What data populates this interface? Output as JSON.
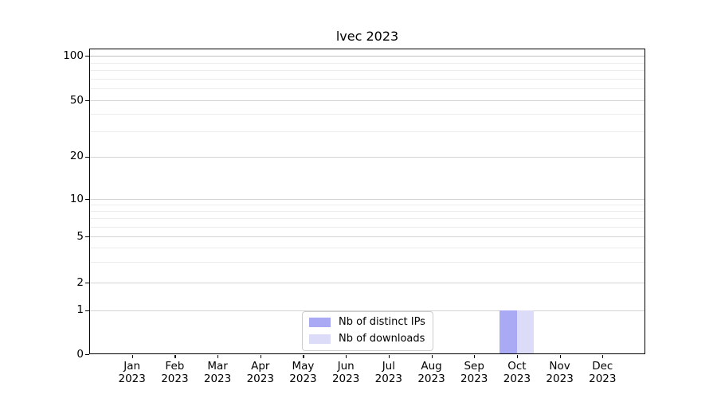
{
  "chart_data": {
    "type": "bar",
    "title": "lvec 2023",
    "categories": [
      {
        "month": "Jan",
        "year": "2023"
      },
      {
        "month": "Feb",
        "year": "2023"
      },
      {
        "month": "Mar",
        "year": "2023"
      },
      {
        "month": "Apr",
        "year": "2023"
      },
      {
        "month": "May",
        "year": "2023"
      },
      {
        "month": "Jun",
        "year": "2023"
      },
      {
        "month": "Jul",
        "year": "2023"
      },
      {
        "month": "Aug",
        "year": "2023"
      },
      {
        "month": "Sep",
        "year": "2023"
      },
      {
        "month": "Oct",
        "year": "2023"
      },
      {
        "month": "Nov",
        "year": "2023"
      },
      {
        "month": "Dec",
        "year": "2023"
      }
    ],
    "series": [
      {
        "name": "Nb of distinct IPs",
        "color": "#a9a9f4",
        "values": [
          0,
          0,
          0,
          0,
          0,
          0,
          0,
          0,
          0,
          1,
          0,
          0
        ]
      },
      {
        "name": "Nb of downloads",
        "color": "#dcdcf8",
        "values": [
          0,
          0,
          0,
          0,
          0,
          0,
          0,
          0,
          0,
          1,
          0,
          0
        ]
      }
    ],
    "y_axis": {
      "scale": "symlog",
      "ticks": [
        0,
        1,
        2,
        5,
        10,
        20,
        50,
        100
      ],
      "minor_ticks": [
        3,
        4,
        6,
        7,
        8,
        9,
        30,
        40,
        60,
        70,
        80,
        90
      ],
      "range_top": 112
    },
    "x_axis": {
      "unit": "month"
    },
    "grid": "horizontal major and minor",
    "legend_position": "lower-center"
  },
  "colors": {
    "background": "#ffffff",
    "axis": "#000000",
    "grid_major": "#d4d4d4",
    "grid_minor": "#ececec",
    "grid_top_line": "#c0c0c0",
    "legend_border": "#cccccc",
    "text": "#000000"
  }
}
